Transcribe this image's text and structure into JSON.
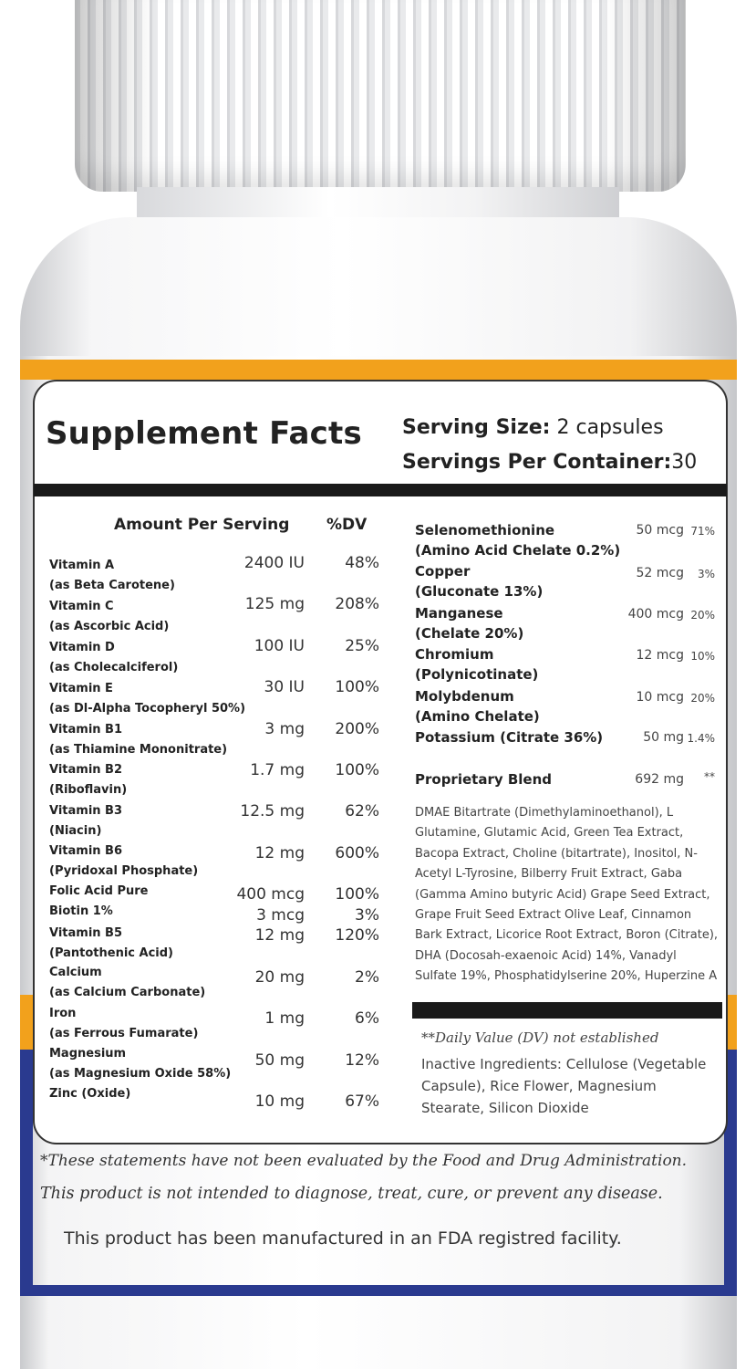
{
  "label": {
    "title": "Supplement Facts",
    "serving_size_label": "Serving Size:",
    "serving_size_value": "2 capsules",
    "servings_per_container_label": "Servings Per Container:",
    "servings_per_container_value": "30",
    "header_amount": "Amount Per Serving",
    "header_dv": "%DV"
  },
  "left_nutrients": [
    {
      "name": "Vitamin A",
      "sub": "(as Beta Carotene)",
      "amount": "2400 IU",
      "dv": "48%"
    },
    {
      "name": "Vitamin C",
      "sub": "(as Ascorbic Acid)",
      "amount": "125 mg",
      "dv": "208%"
    },
    {
      "name": "Vitamin D",
      "sub": "(as Cholecalciferol)",
      "amount": "100 IU",
      "dv": "25%"
    },
    {
      "name": "Vitamin E",
      "sub": "(as Dl-Alpha Tocopheryl 50%)",
      "amount": "30 IU",
      "dv": "100%"
    },
    {
      "name": "Vitamin B1",
      "sub": "(as Thiamine Mononitrate)",
      "amount": "3 mg",
      "dv": "200%"
    },
    {
      "name": "Vitamin B2",
      "sub": "(Riboflavin)",
      "amount": "1.7 mg",
      "dv": "100%"
    },
    {
      "name": "Vitamin B3",
      "sub": "(Niacin)",
      "amount": "12.5 mg",
      "dv": "62%"
    },
    {
      "name": "Vitamin B6",
      "sub": "(Pyridoxal Phosphate)",
      "amount": "12 mg",
      "dv": "600%"
    },
    {
      "name": "Folic Acid Pure",
      "sub": "",
      "amount": "400 mcg",
      "dv": "100%"
    },
    {
      "name": "Biotin 1%",
      "sub": "",
      "amount": "3 mcg",
      "dv": "3%"
    },
    {
      "name": "Vitamin B5",
      "sub": "(Pantothenic Acid)",
      "amount": "12 mg",
      "dv": "120%"
    },
    {
      "name": "Calcium",
      "sub": "(as Calcium Carbonate)",
      "amount": "20 mg",
      "dv": "2%"
    },
    {
      "name": "Iron",
      "sub": "(as Ferrous Fumarate)",
      "amount": "1 mg",
      "dv": "6%"
    },
    {
      "name": "Magnesium",
      "sub": "(as Magnesium Oxide 58%)",
      "amount": "50 mg",
      "dv": "12%"
    },
    {
      "name": "Zinc (Oxide)",
      "sub": "",
      "amount": "10 mg",
      "dv": "67%"
    }
  ],
  "right_nutrients": [
    {
      "name": "Selenomethionine",
      "sub": "(Amino Acid Chelate 0.2%)",
      "amount": "50 mcg",
      "dv": "71%"
    },
    {
      "name": "Copper",
      "sub": "(Gluconate 13%)",
      "amount": "52 mcg",
      "dv": "3%"
    },
    {
      "name": "Manganese",
      "sub": "(Chelate 20%)",
      "amount": "400 mcg",
      "dv": "20%"
    },
    {
      "name": "Chromium",
      "sub": "(Polynicotinate)",
      "amount": "12 mcg",
      "dv": "10%"
    },
    {
      "name": "Molybdenum",
      "sub": "(Amino Chelate)",
      "amount": "10 mcg",
      "dv": "20%"
    },
    {
      "name": "Potassium (Citrate 36%)",
      "sub": "",
      "amount": "50 mg",
      "dv": "1.4%"
    }
  ],
  "blend": {
    "name": "Proprietary Blend",
    "amount": "692 mg",
    "dv": "**",
    "ingredients": "DMAE Bitartrate (Dimethylaminoethanol), L Glutamine, Glutamic Acid, Green Tea Extract, Bacopa Extract, Choline (bitartrate), Inositol, N-Acetyl L-Tyrosine, Bilberry Fruit Extract, Gaba (Gamma Amino butyric Acid) Grape Seed Extract, Grape Fruit Seed Extract Olive Leaf, Cinnamon Bark Extract, Licorice Root Extract, Boron (Citrate), DHA (Docosah-exaenoic Acid) 14%, Vanadyl Sulfate 19%, Phosphatidylserine 20%, Huperzine A"
  },
  "notes": {
    "dv_note": "**Daily Value (DV) not established",
    "inactive": "Inactive Ingredients: Cellulose (Vegetable Capsule), Rice Flower, Magnesium Stearate, Silicon Dioxide",
    "statement_1": "*These statements have not been evaluated by the Food and Drug Administration.",
    "statement_2": "This product is not intended to diagnose, treat, cure, or prevent any disease.",
    "statement_3": "This product has been manufactured in an FDA registred facility."
  },
  "colors": {
    "accent_orange": "#f2a11c",
    "accent_blue": "#2a3a8f"
  }
}
